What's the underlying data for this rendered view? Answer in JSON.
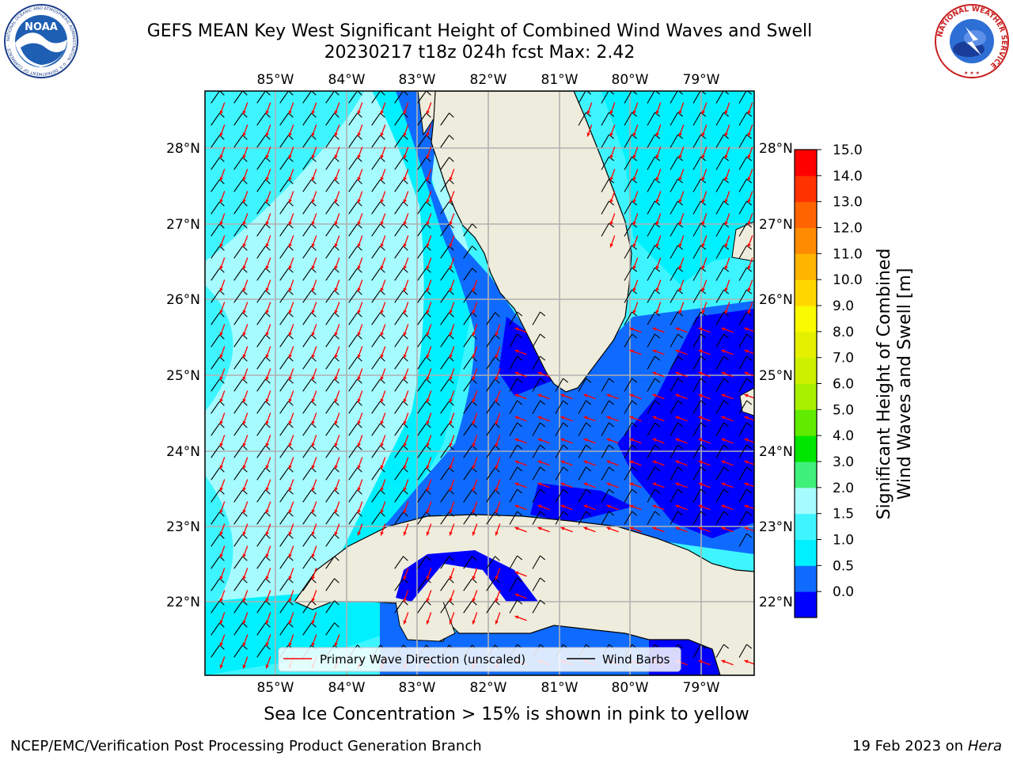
{
  "header": {
    "title_line1": "GEFS MEAN Key West Significant Height of Combined Wind Waves and Swell",
    "title_line2": "20230217 t18z 024h fcst   Max: 2.42"
  },
  "logos": {
    "left": {
      "name": "NOAA",
      "ring_text": "NATIONAL OCEANIC AND ATMOSPHERIC ADMINISTRATION · U.S. DEPARTMENT OF COMMERCE ·"
    },
    "right": {
      "ring_text": "NATIONAL WEATHER SERVICE"
    }
  },
  "map": {
    "lon_labels": [
      "85°W",
      "84°W",
      "83°W",
      "82°W",
      "81°W",
      "80°W",
      "79°W"
    ],
    "lat_labels": [
      "28°N",
      "27°N",
      "26°N",
      "25°N",
      "24°N",
      "23°N",
      "22°N"
    ],
    "legend": {
      "wave_label": "Primary Wave Direction (unscaled)",
      "barb_label": "Wind Barbs"
    },
    "colors": {
      "land": "#eeecdc",
      "wave_arrow": "#ff0000",
      "barb": "#000000",
      "grid": "#b0b0b0"
    }
  },
  "colorbar": {
    "label_line1": "Significant Height of Combined",
    "label_line2": "Wind Waves and Swell [m]",
    "ticks": [
      "15.0",
      "14.0",
      "13.0",
      "12.0",
      "11.0",
      "10.0",
      "9.0",
      "8.0",
      "7.0",
      "6.0",
      "5.0",
      "4.0",
      "3.0",
      "2.0",
      "1.5",
      "1.0",
      "0.5",
      "0.0"
    ],
    "colors_bottom_to_top": [
      "#0000ff",
      "#0f6bff",
      "#00f0ff",
      "#3ef5ff",
      "#a6fbff",
      "#3ff07a",
      "#00e600",
      "#60eb00",
      "#a8f000",
      "#ccf000",
      "#e5f000",
      "#fafa00",
      "#ffd700",
      "#ffb400",
      "#ff8c00",
      "#ff6400",
      "#ff3200",
      "#ff0000"
    ]
  },
  "footer": {
    "subtitle": "Sea Ice Concentration > 15% is shown in pink to yellow",
    "left": "NCEP/EMC/Verification Post Processing Product Generation Branch",
    "right_date": "19 Feb 2023 on",
    "right_host": "Hera"
  }
}
